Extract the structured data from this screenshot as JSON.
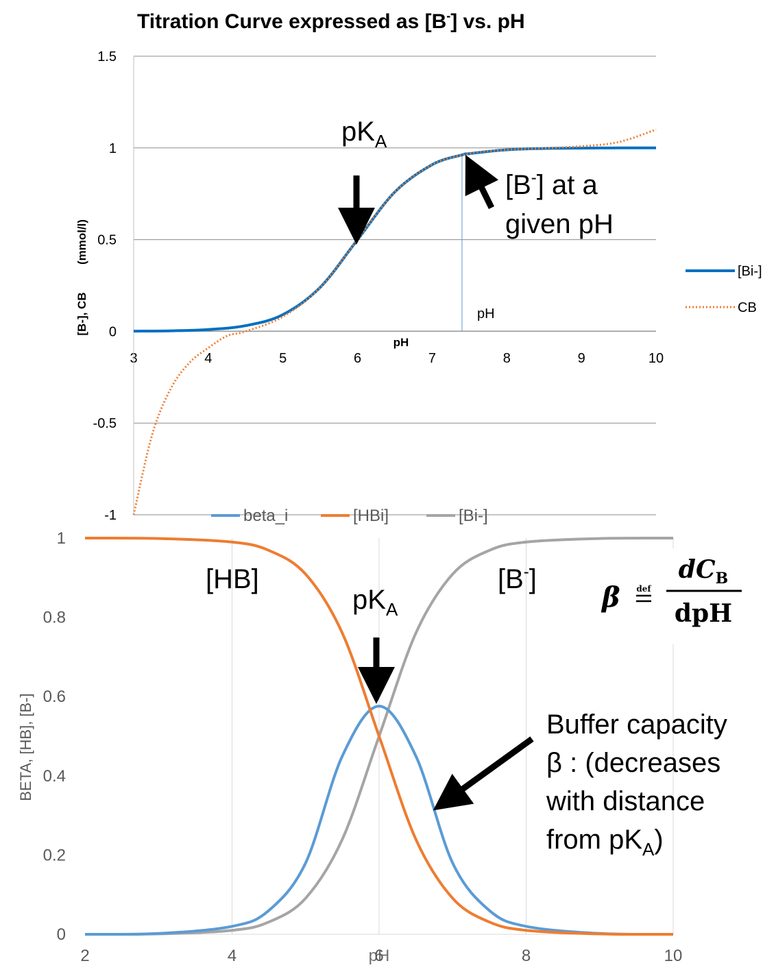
{
  "chart_data": [
    {
      "type": "line",
      "title": "Titration Curve expressed as [B",
      "title_sup": "-",
      "title_tail": "] vs. pH",
      "xlabel": "pH",
      "ylabel_a": "[B-], CB",
      "ylabel_b": "(mmol/l)",
      "xlim": [
        3,
        10
      ],
      "ylim": [
        -1,
        1.5
      ],
      "x_ticks": [
        "3",
        "4",
        "5",
        "6",
        "7",
        "8",
        "9",
        "10"
      ],
      "y_ticks": [
        "-1",
        "-0.5",
        "0",
        "0.5",
        "1",
        "1.5"
      ],
      "grid": "horizontal",
      "legend_position": "right",
      "pKa": 6,
      "marker_pH": 7.4,
      "series": [
        {
          "name": "[Bi-]",
          "color": "#0070c0",
          "style": "solid",
          "x": [
            3,
            3.5,
            4,
            4.5,
            5,
            5.5,
            6,
            6.5,
            7,
            7.4,
            7.5,
            8,
            8.5,
            9,
            9.5,
            10
          ],
          "y": [
            0.001,
            0.003,
            0.01,
            0.031,
            0.091,
            0.24,
            0.5,
            0.76,
            0.909,
            0.962,
            0.969,
            0.99,
            0.997,
            0.999,
            1.0,
            1.0
          ]
        },
        {
          "name": "CB",
          "color": "#ed7d31",
          "style": "dotted",
          "x": [
            3,
            3.25,
            3.5,
            3.75,
            4,
            4.25,
            4.5,
            5,
            5.5,
            6,
            6.5,
            7,
            7.5,
            8,
            8.5,
            9,
            9.5,
            10
          ],
          "y": [
            -1.0,
            -0.56,
            -0.31,
            -0.17,
            -0.09,
            -0.025,
            0.0,
            0.08,
            0.24,
            0.5,
            0.76,
            0.909,
            0.969,
            0.99,
            0.998,
            1.009,
            1.032,
            1.1
          ]
        }
      ],
      "annotations": {
        "pka_label": "pK",
        "pka_sub": "A",
        "b_line1_a": "[B",
        "b_line1_sup": "-",
        "b_line1_b": "] at a",
        "b_line2": "given pH",
        "ph_marker_label": "pH"
      }
    },
    {
      "type": "line",
      "ylabel": "BETA, [HB], [B-]",
      "xlabel": "pH",
      "xlim": [
        2,
        10
      ],
      "ylim": [
        0,
        1
      ],
      "x_ticks": [
        "2",
        "4",
        "6",
        "8",
        "10"
      ],
      "y_ticks": [
        "0",
        "0.2",
        "0.4",
        "0.6",
        "0.8",
        "1"
      ],
      "grid": "vertical",
      "legend_position": "top",
      "pKa": 6,
      "series": [
        {
          "name": "beta_i",
          "color": "#5b9bd5",
          "x": [
            2,
            3,
            4,
            4.5,
            5,
            5.5,
            6,
            6.5,
            7,
            7.5,
            8,
            9,
            10
          ],
          "y": [
            0.0,
            0.002,
            0.02,
            0.06,
            0.18,
            0.45,
            0.576,
            0.45,
            0.18,
            0.06,
            0.02,
            0.002,
            0.0
          ]
        },
        {
          "name": "[HBi]",
          "color": "#ed7d31",
          "x": [
            2,
            3,
            4,
            4.5,
            5,
            5.5,
            6,
            6.5,
            7,
            7.5,
            8,
            9,
            10
          ],
          "y": [
            1.0,
            0.999,
            0.99,
            0.969,
            0.909,
            0.76,
            0.5,
            0.24,
            0.091,
            0.031,
            0.01,
            0.001,
            0.0
          ]
        },
        {
          "name": "[Bi-]",
          "color": "#a5a5a5",
          "x": [
            2,
            3,
            4,
            4.5,
            5,
            5.5,
            6,
            6.5,
            7,
            7.5,
            8,
            9,
            10
          ],
          "y": [
            0.0,
            0.001,
            0.01,
            0.031,
            0.091,
            0.24,
            0.5,
            0.76,
            0.909,
            0.969,
            0.99,
            0.999,
            1.0
          ]
        }
      ],
      "annotations": {
        "hb_label": "[HB]",
        "b_label_a": "[B",
        "b_label_sup": "-",
        "b_label_b": "]",
        "pka_label": "pK",
        "pka_sub": "A",
        "buffer_line1": "Buffer capacity",
        "buffer_line2": "β : (decreases",
        "buffer_line3": "with distance",
        "buffer_line4_a": "from pK",
        "buffer_line4_sub": "A",
        "buffer_line4_b": ")",
        "formula_beta": "β",
        "formula_def": "def",
        "formula_num": "dC",
        "formula_num_sub": "B",
        "formula_den": "dpH",
        "x_overlap_label": "pH"
      }
    }
  ]
}
